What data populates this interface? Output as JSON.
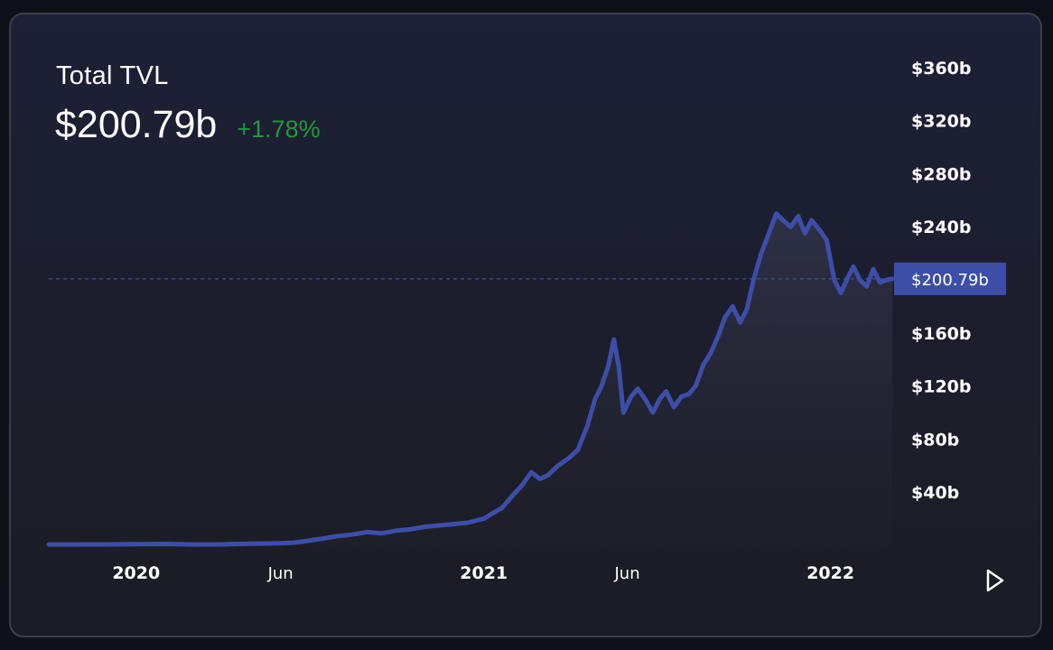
{
  "header": {
    "title": "Total TVL",
    "value": "$200.79b",
    "change": "+1.78%"
  },
  "colors": {
    "line": "#3d4ea8",
    "change_positive": "#1f9a3a",
    "price_tag_bg": "#3d4ea8"
  },
  "controls": {
    "play_icon": "play-icon"
  },
  "chart_data": {
    "type": "area",
    "title": "",
    "xlabel": "",
    "ylabel": "",
    "ylim": [
      0,
      380
    ],
    "y_unit": "b",
    "y_ticks": [
      {
        "value": 40,
        "label": "$40b"
      },
      {
        "value": 80,
        "label": "$80b"
      },
      {
        "value": 120,
        "label": "$120b"
      },
      {
        "value": 160,
        "label": "$160b"
      },
      {
        "value": 240,
        "label": "$240b"
      },
      {
        "value": 280,
        "label": "$280b"
      },
      {
        "value": 320,
        "label": "$320b"
      },
      {
        "value": 360,
        "label": "$360b"
      }
    ],
    "x_ticks": [
      {
        "date": "2020-01-01",
        "label": "2020",
        "major": true
      },
      {
        "date": "2020-06-01",
        "label": "Jun",
        "major": false
      },
      {
        "date": "2021-01-01",
        "label": "2021",
        "major": true
      },
      {
        "date": "2021-06-01",
        "label": "Jun",
        "major": false
      },
      {
        "date": "2022-01-01",
        "label": "2022",
        "major": true
      }
    ],
    "current": {
      "value": 200.79,
      "label": "$200.79b"
    },
    "grid": false,
    "series": [
      {
        "x": [
          "2019-10-01",
          "2019-11-01",
          "2019-12-01",
          "2020-01-01",
          "2020-02-01",
          "2020-03-01",
          "2020-04-01",
          "2020-05-01",
          "2020-06-01",
          "2020-06-15",
          "2020-07-01",
          "2020-07-15",
          "2020-08-01",
          "2020-08-15",
          "2020-09-01",
          "2020-09-15",
          "2020-10-01",
          "2020-10-15",
          "2020-11-01",
          "2020-11-15",
          "2020-12-01",
          "2020-12-15",
          "2021-01-01",
          "2021-01-10",
          "2021-01-20",
          "2021-02-01",
          "2021-02-10",
          "2021-02-20",
          "2021-03-01",
          "2021-03-10",
          "2021-03-20",
          "2021-04-01",
          "2021-04-10",
          "2021-04-20",
          "2021-04-28",
          "2021-05-05",
          "2021-05-12",
          "2021-05-18",
          "2021-05-23",
          "2021-05-28",
          "2021-06-05",
          "2021-06-12",
          "2021-06-20",
          "2021-06-28",
          "2021-07-05",
          "2021-07-12",
          "2021-07-20",
          "2021-07-28",
          "2021-08-05",
          "2021-08-12",
          "2021-08-20",
          "2021-08-28",
          "2021-09-05",
          "2021-09-12",
          "2021-09-20",
          "2021-09-28",
          "2021-10-05",
          "2021-10-12",
          "2021-10-20",
          "2021-10-28",
          "2021-11-05",
          "2021-11-12",
          "2021-11-20",
          "2021-11-28",
          "2021-12-05",
          "2021-12-12",
          "2021-12-20",
          "2021-12-28",
          "2022-01-05",
          "2022-01-12",
          "2022-01-18",
          "2022-01-25",
          "2022-02-01",
          "2022-02-08",
          "2022-02-15",
          "2022-02-22",
          "2022-03-01",
          "2022-03-07"
        ],
        "values": [
          0.6,
          0.6,
          0.7,
          0.8,
          1.0,
          0.6,
          0.7,
          1.2,
          1.5,
          2.0,
          3.5,
          5,
          7,
          8,
          10,
          9,
          11,
          12,
          14,
          15,
          16,
          17,
          20,
          24,
          28,
          38,
          45,
          55,
          50,
          53,
          60,
          66,
          72,
          90,
          110,
          120,
          135,
          155,
          135,
          100,
          112,
          118,
          110,
          100,
          110,
          116,
          104,
          112,
          114,
          120,
          136,
          145,
          158,
          172,
          180,
          168,
          178,
          200,
          220,
          235,
          250,
          245,
          240,
          248,
          235,
          245,
          238,
          230,
          200,
          190,
          200,
          210,
          200,
          195,
          208,
          198,
          200,
          200.79
        ]
      }
    ]
  }
}
